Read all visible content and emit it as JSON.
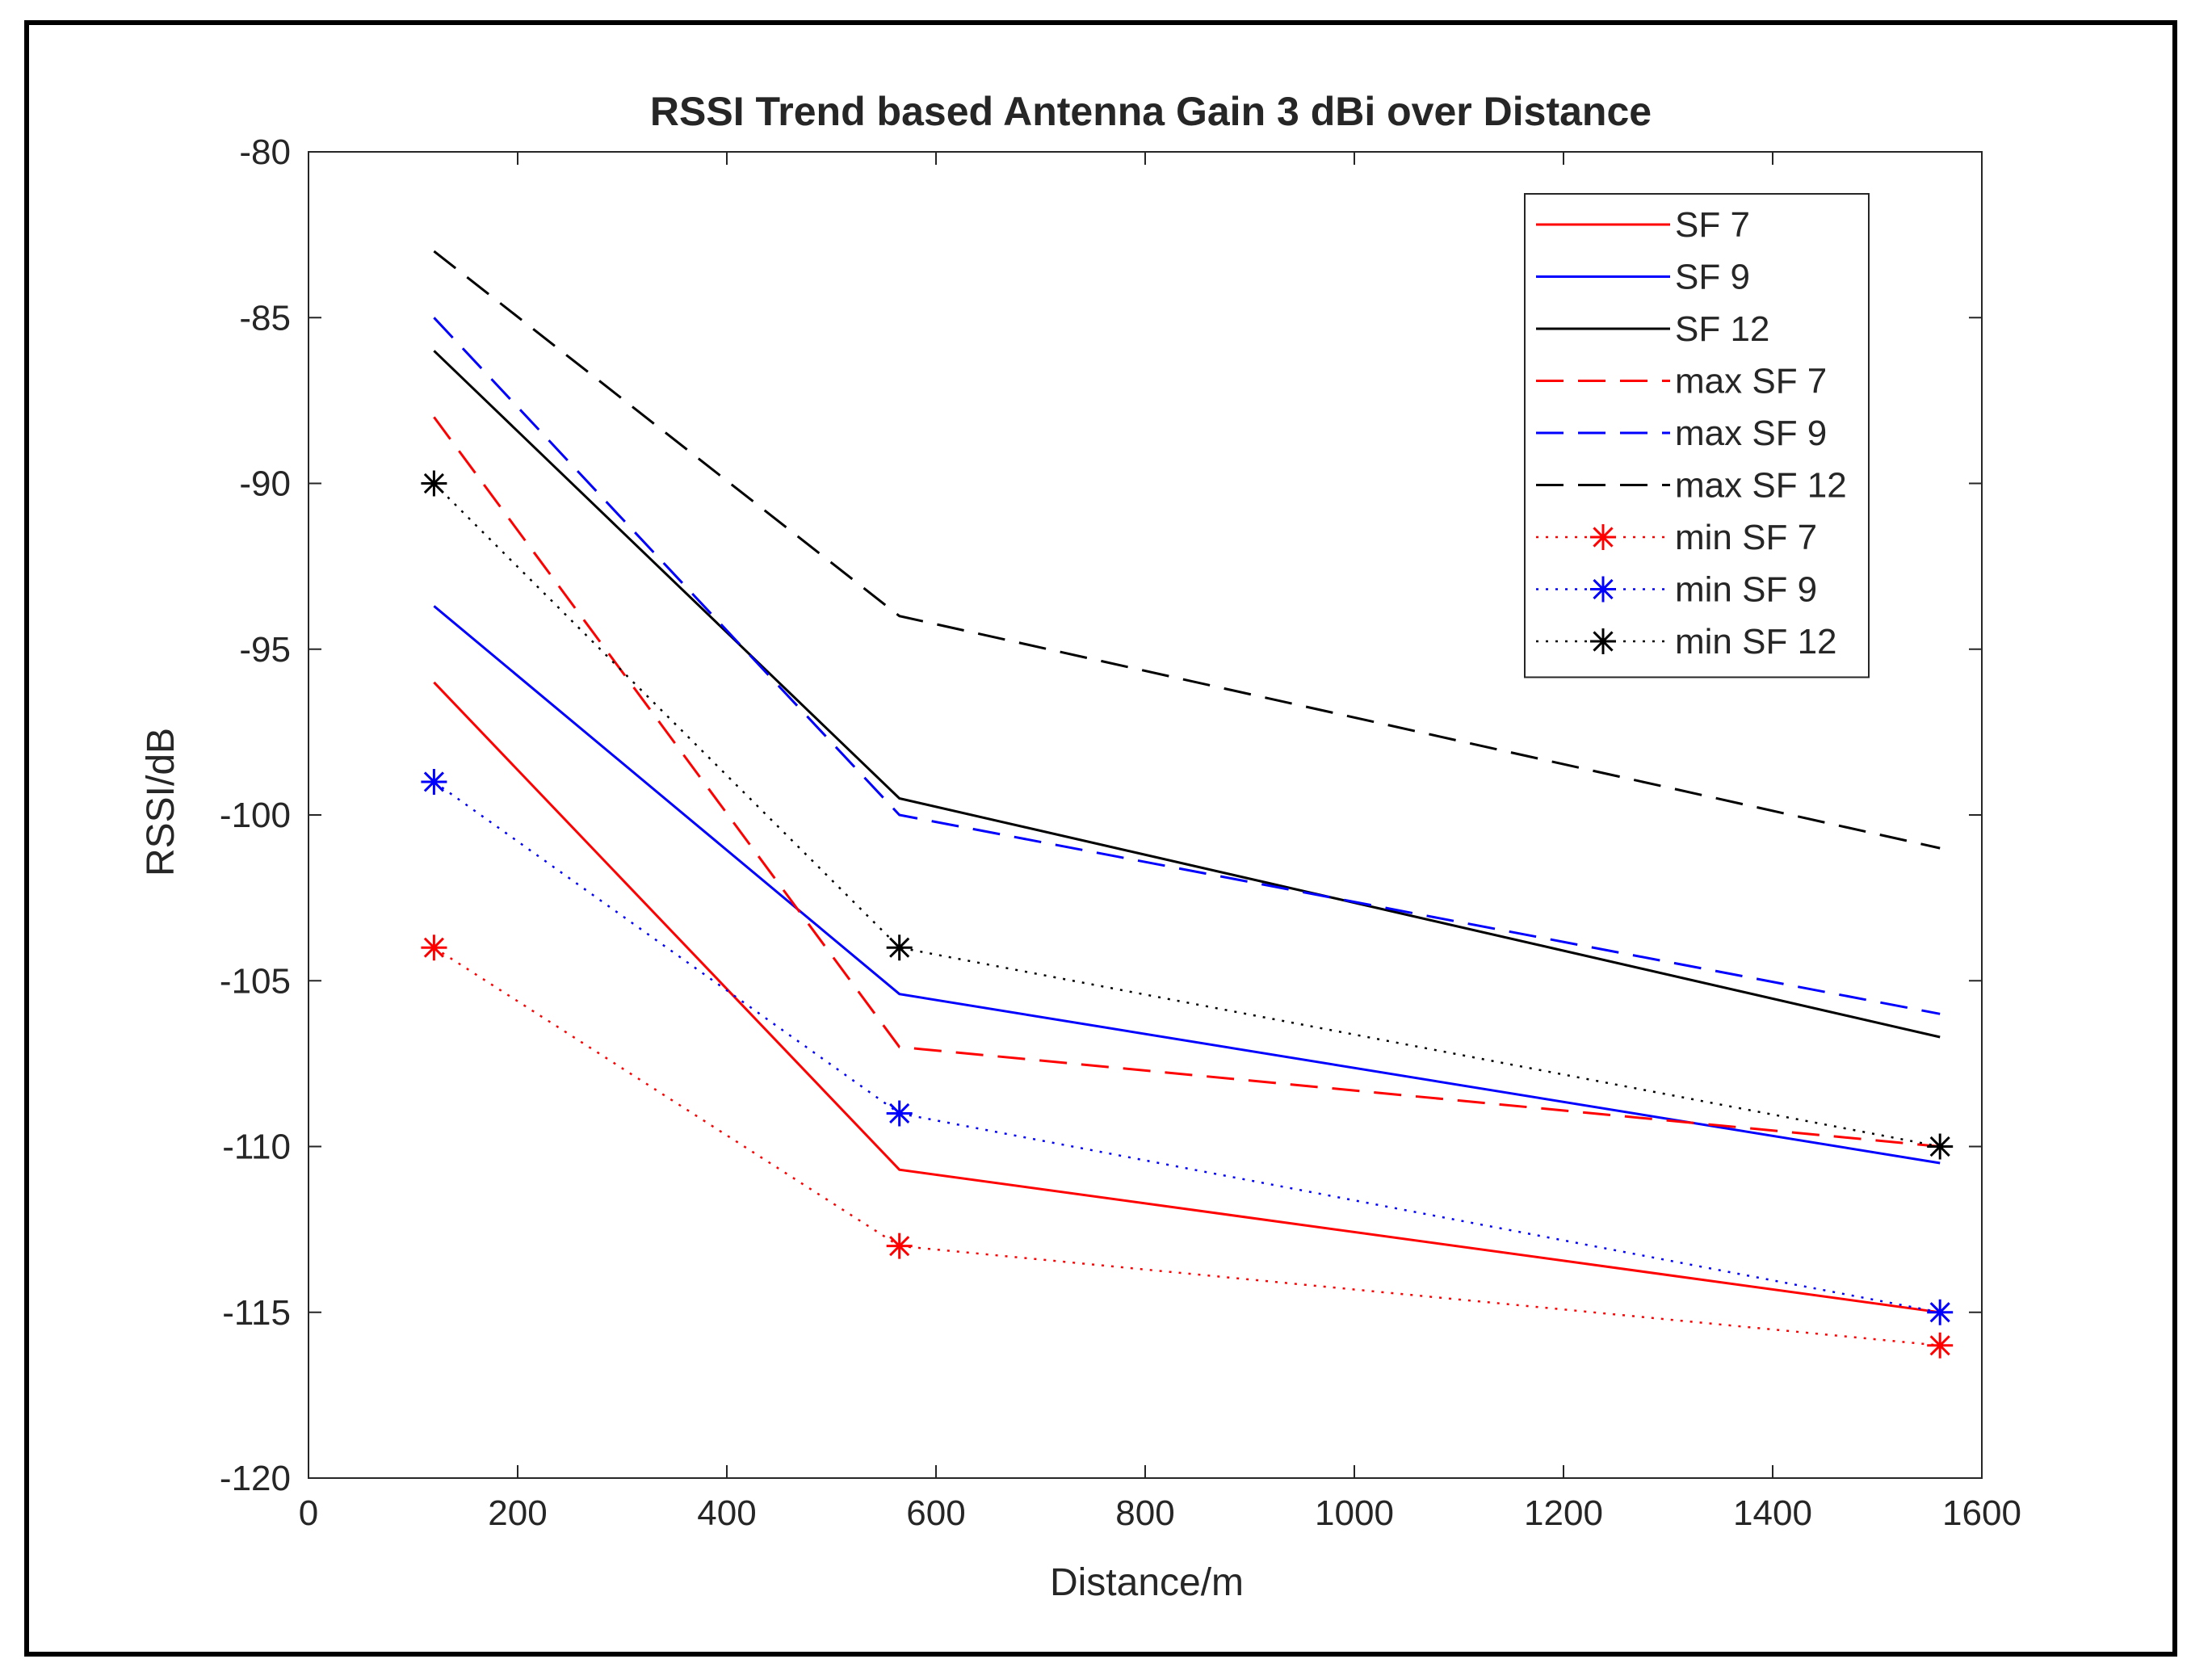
{
  "chart_data": {
    "type": "line",
    "title": "RSSI Trend based Antenna Gain 3 dBi over Distance",
    "xlabel": "Distance/m",
    "ylabel": "RSSI/dB",
    "xlim": [
      0,
      1600
    ],
    "ylim": [
      -120,
      -80
    ],
    "xticks": [
      0,
      200,
      400,
      600,
      800,
      1000,
      1200,
      1400,
      1600
    ],
    "yticks": [
      -120,
      -115,
      -110,
      -105,
      -100,
      -95,
      -90,
      -85,
      -80
    ],
    "grid": false,
    "legend_position": "top-right",
    "x": [
      120,
      565,
      1560
    ],
    "series": [
      {
        "name": "SF 7",
        "color": "#ff0000",
        "style": "solid",
        "marker": "none",
        "values": [
          -96,
          -110.7,
          -115
        ]
      },
      {
        "name": "SF 9",
        "color": "#0000ff",
        "style": "solid",
        "marker": "none",
        "values": [
          -93.7,
          -105.4,
          -110.5
        ]
      },
      {
        "name": "SF 12",
        "color": "#000000",
        "style": "solid",
        "marker": "none",
        "values": [
          -86,
          -99.5,
          -106.7
        ]
      },
      {
        "name": "max SF 7",
        "color": "#ff0000",
        "style": "dashed",
        "marker": "none",
        "values": [
          -88,
          -107,
          -110
        ]
      },
      {
        "name": "max SF 9",
        "color": "#0000ff",
        "style": "dashed",
        "marker": "none",
        "values": [
          -85,
          -100,
          -106
        ]
      },
      {
        "name": "max SF 12",
        "color": "#000000",
        "style": "dashed",
        "marker": "none",
        "values": [
          -83,
          -94,
          -101
        ]
      },
      {
        "name": "min SF 7",
        "color": "#ff0000",
        "style": "dotted",
        "marker": "asterisk",
        "values": [
          -104,
          -113,
          -116
        ]
      },
      {
        "name": "min SF 9",
        "color": "#0000ff",
        "style": "dotted",
        "marker": "asterisk",
        "values": [
          -99,
          -109,
          -115
        ]
      },
      {
        "name": "min SF 12",
        "color": "#000000",
        "style": "dotted",
        "marker": "asterisk",
        "values": [
          -90,
          -104,
          -110
        ]
      }
    ]
  }
}
